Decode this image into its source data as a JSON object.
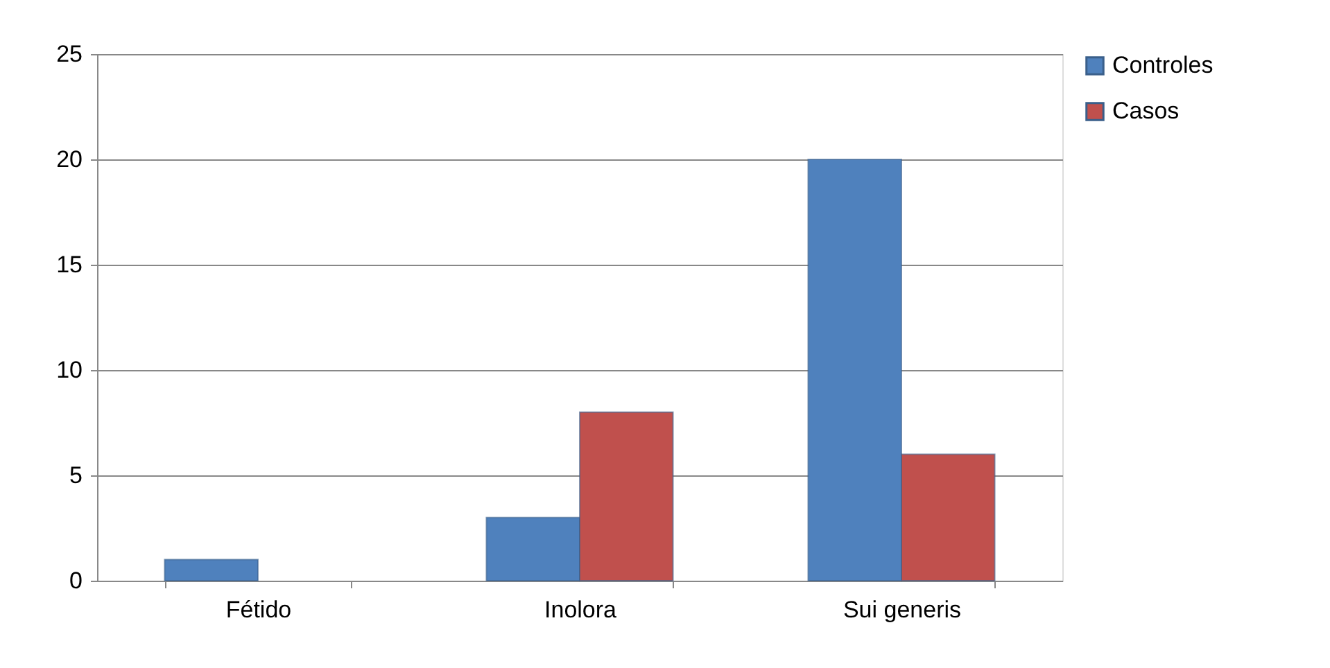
{
  "chart_data": {
    "type": "bar",
    "categories": [
      "Fétido",
      "Inolora",
      "Sui generis"
    ],
    "series": [
      {
        "name": "Controles",
        "color": "#4f81bd",
        "values": [
          1,
          3,
          20
        ]
      },
      {
        "name": "Casos",
        "color": "#c0504d",
        "values": [
          null,
          8,
          6
        ]
      }
    ],
    "ylim": [
      0,
      25
    ],
    "yticks": [
      0,
      5,
      10,
      15,
      20,
      25
    ],
    "grid": "y",
    "legend": "right"
  }
}
